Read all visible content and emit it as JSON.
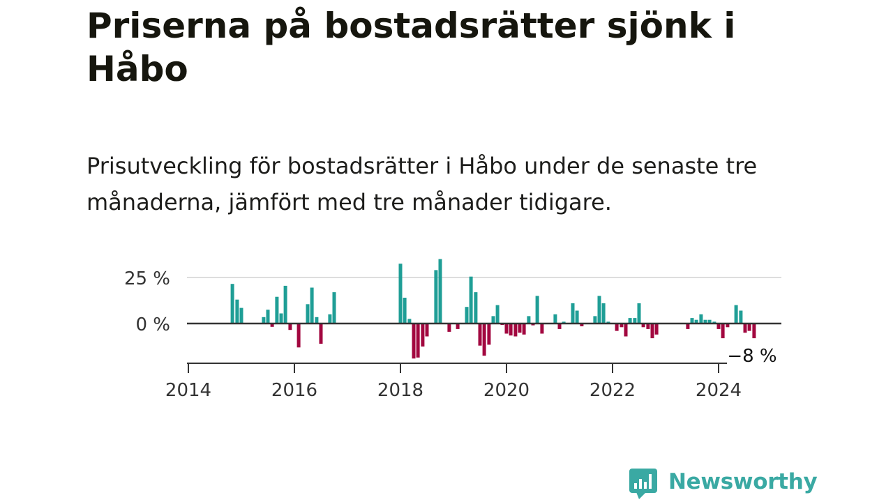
{
  "title": "Priserna på bostadsrätter sjönk i Håbo",
  "subtitle": "Prisutveckling för bostadsrätter i Håbo under de senaste tre månaderna, jämfört med tre månader tidigare.",
  "brand": {
    "name": "Newsworthy",
    "color": "#3aa9a3",
    "icon": "bar-chart-speech-bubble-icon"
  },
  "colors": {
    "positive": "#1f9e96",
    "negative": "#a2073f",
    "grid": "#dddddd",
    "axis": "#333333"
  },
  "chart_data": {
    "type": "bar",
    "title": "",
    "xlabel": "",
    "ylabel": "",
    "x_ticks": [
      "2014",
      "2016",
      "2018",
      "2020",
      "2022",
      "2024"
    ],
    "x_tick_values": [
      2014,
      2016,
      2018,
      2020,
      2022,
      2024
    ],
    "y_ticks": [
      "25 %",
      "0 %"
    ],
    "y_tick_values": [
      25,
      0
    ],
    "xlim": [
      2014,
      2025.2
    ],
    "ylim": [
      -21,
      36
    ],
    "grid": true,
    "last_value_label": "−8 %",
    "series": [
      {
        "x": [
          2014.83,
          2014.92,
          2015.0,
          2015.42,
          2015.5,
          2015.58,
          2015.67,
          2015.75,
          2015.83,
          2015.92,
          2016.08,
          2016.25,
          2016.33,
          2016.42,
          2016.5,
          2016.67,
          2016.75,
          2018.0,
          2018.08,
          2018.17,
          2018.25,
          2018.33,
          2018.42,
          2018.5,
          2018.67,
          2018.75,
          2018.92,
          2019.08,
          2019.25,
          2019.33,
          2019.42,
          2019.5,
          2019.58,
          2019.67,
          2019.75,
          2019.83,
          2019.92,
          2020.0,
          2020.08,
          2020.17,
          2020.25,
          2020.33,
          2020.42,
          2020.5,
          2020.58,
          2020.67,
          2020.92,
          2021.0,
          2021.08,
          2021.25,
          2021.33,
          2021.42,
          2021.67,
          2021.75,
          2021.83,
          2021.92,
          2022.08,
          2022.17,
          2022.25,
          2022.33,
          2022.42,
          2022.5,
          2022.58,
          2022.67,
          2022.75,
          2022.83,
          2023.42,
          2023.5,
          2023.58,
          2023.67,
          2023.75,
          2023.83,
          2023.92,
          2024.0,
          2024.08,
          2024.17,
          2024.33,
          2024.42,
          2024.5,
          2024.58,
          2024.67
        ],
        "values": [
          21.5,
          13,
          8.5,
          3.5,
          7.5,
          -1.8,
          14.5,
          5.5,
          20.5,
          -3.5,
          -13,
          10.5,
          19.5,
          3.5,
          -11,
          5,
          17,
          32.5,
          14,
          2.5,
          -19,
          -18.5,
          -12.5,
          -7,
          29,
          35,
          -4.5,
          -3,
          9,
          25.5,
          17,
          -12,
          -17.5,
          -11.5,
          4,
          10,
          -0.8,
          -5.5,
          -6.5,
          -7,
          -5,
          -6,
          4,
          -1,
          15,
          -5.5,
          5,
          -3,
          1,
          11,
          7,
          -1.5,
          4,
          15,
          11,
          1,
          -4,
          -2,
          -7,
          3,
          3,
          11,
          -2,
          -3,
          -8,
          -6,
          -3,
          3,
          2,
          5,
          2,
          2,
          1,
          -3,
          -8,
          -2,
          10,
          7,
          -5,
          -4,
          -8
        ]
      }
    ]
  }
}
